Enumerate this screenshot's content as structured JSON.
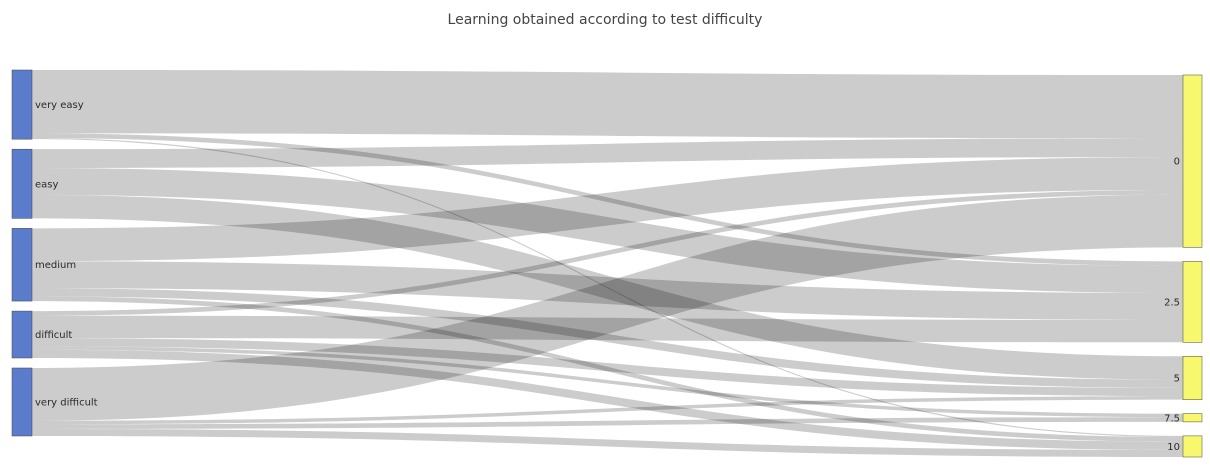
{
  "chart_data": {
    "type": "sankey",
    "title": "Learning obtained according to test difficulty",
    "colors": {
      "source_node": "#5b7bcb",
      "target_node": "#f8f86e",
      "link": "#000000"
    },
    "sources": [
      {
        "label": "very easy"
      },
      {
        "label": "easy"
      },
      {
        "label": "medium"
      },
      {
        "label": "difficult"
      },
      {
        "label": "very difficult"
      }
    ],
    "targets": [
      {
        "label": "0"
      },
      {
        "label": "2.5"
      },
      {
        "label": "5"
      },
      {
        "label": "7.5"
      },
      {
        "label": "10"
      }
    ],
    "links": [
      {
        "source": "very easy",
        "target": "0",
        "value": 54
      },
      {
        "source": "very easy",
        "target": "2.5",
        "value": 4
      },
      {
        "source": "very easy",
        "target": "10",
        "value": 1
      },
      {
        "source": "easy",
        "target": "0",
        "value": 16
      },
      {
        "source": "easy",
        "target": "2.5",
        "value": 23
      },
      {
        "source": "easy",
        "target": "5",
        "value": 20
      },
      {
        "source": "medium",
        "target": "0",
        "value": 28
      },
      {
        "source": "medium",
        "target": "2.5",
        "value": 23
      },
      {
        "source": "medium",
        "target": "5",
        "value": 7
      },
      {
        "source": "medium",
        "target": "10",
        "value": 4
      },
      {
        "source": "difficult",
        "target": "0",
        "value": 4
      },
      {
        "source": "difficult",
        "target": "2.5",
        "value": 19
      },
      {
        "source": "difficult",
        "target": "5",
        "value": 7
      },
      {
        "source": "difficult",
        "target": "7.5",
        "value": 3
      },
      {
        "source": "difficult",
        "target": "10",
        "value": 7
      },
      {
        "source": "very difficult",
        "target": "0",
        "value": 45
      },
      {
        "source": "very difficult",
        "target": "5",
        "value": 3
      },
      {
        "source": "very difficult",
        "target": "7.5",
        "value": 4
      },
      {
        "source": "very difficult",
        "target": "10",
        "value": 6
      }
    ]
  }
}
